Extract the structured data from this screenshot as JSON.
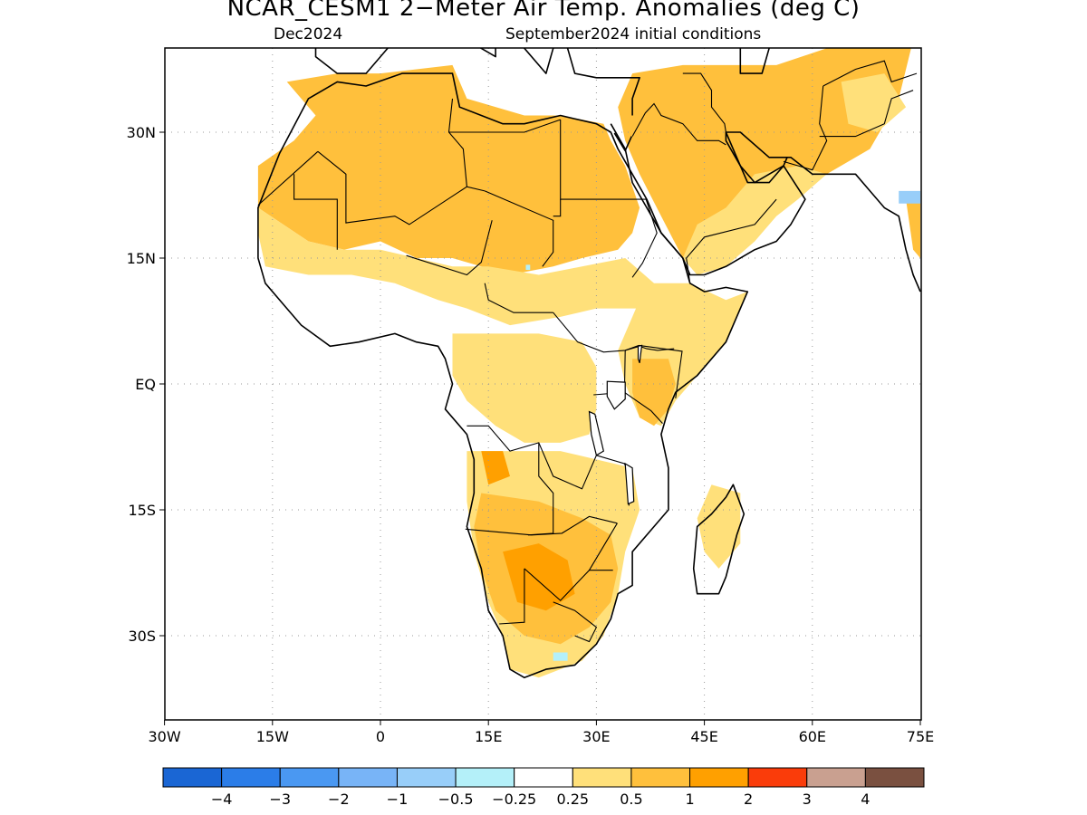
{
  "figure": {
    "title": "NCAR_CESM1 2−Meter Air Temp. Anomalies (deg C)",
    "valid_month": "Dec2024",
    "initial_conditions": "September2024 initial conditions"
  },
  "map": {
    "region": "Africa",
    "lon_range": [
      -30,
      75
    ],
    "lat_range": [
      -47,
      47
    ],
    "grid": true,
    "x_ticks": [
      {
        "lon": -30,
        "label": "30W"
      },
      {
        "lon": -15,
        "label": "15W"
      },
      {
        "lon": 0,
        "label": "0"
      },
      {
        "lon": 15,
        "label": "15E"
      },
      {
        "lon": 30,
        "label": "30E"
      },
      {
        "lon": 45,
        "label": "45E"
      },
      {
        "lon": 60,
        "label": "60E"
      },
      {
        "lon": 75,
        "label": "75E"
      }
    ],
    "y_ticks": [
      {
        "lat": 30,
        "label": "30N"
      },
      {
        "lat": 15,
        "label": "15N"
      },
      {
        "lat": 0,
        "label": "EQ"
      },
      {
        "lat": -15,
        "label": "15S"
      },
      {
        "lat": -30,
        "label": "30S"
      }
    ]
  },
  "colorbar": {
    "colors": [
      "#1a66d4",
      "#2b7de8",
      "#4a98f2",
      "#78b4f7",
      "#98cef9",
      "#b4f0f9",
      "#ffffff",
      "#ffe07a",
      "#ffc03c",
      "#ffa000",
      "#fa3c0a",
      "#c9a090",
      "#7a5040"
    ],
    "labels": [
      "−4",
      "−3",
      "−2",
      "−1",
      "−0.5",
      "−0.25",
      "0.25",
      "0.5",
      "1",
      "2",
      "3",
      "4"
    ]
  },
  "anomaly_colors": {
    "light_orange": "#ffe07a",
    "orange": "#ffc03c",
    "dark_orange": "#ffa000",
    "red": "#fa3c0a",
    "light_blue": "#b4f0f9",
    "mid_blue": "#98cef9"
  }
}
